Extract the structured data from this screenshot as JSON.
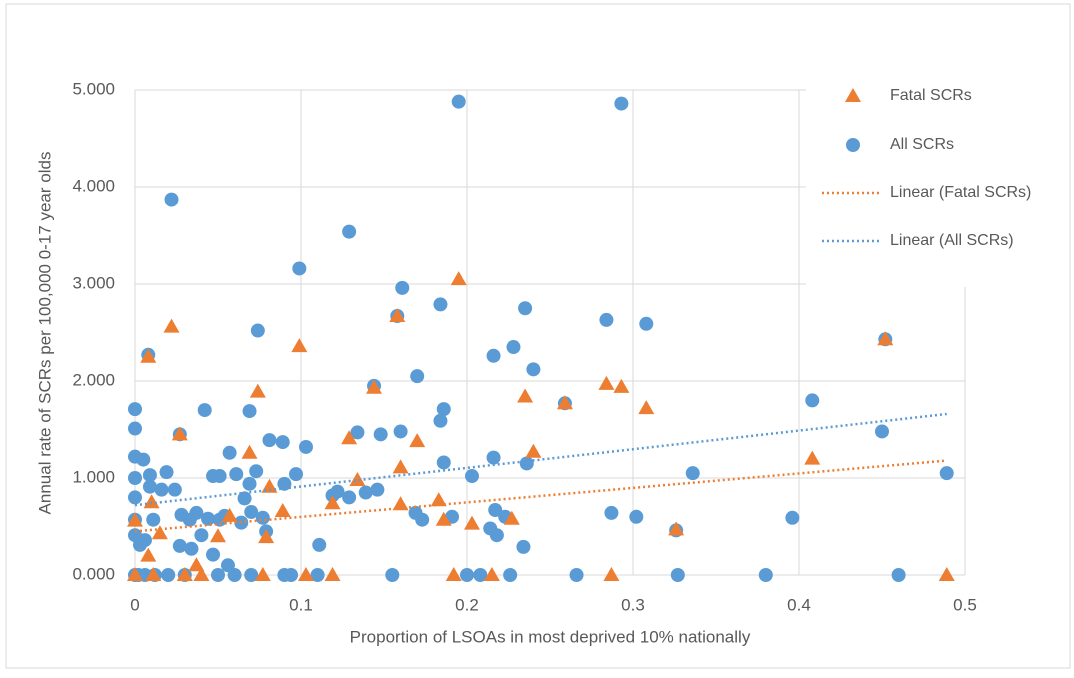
{
  "chart_data": {
    "type": "scatter",
    "x_label": "Proportion of LSOAs in most deprived 10% nationally",
    "y_label": "Annual rate of SCRs per 100,000 0-17 year olds",
    "xlim": [
      0,
      0.5
    ],
    "xticks": [
      0,
      0.1,
      0.2,
      0.3,
      0.4,
      0.5
    ],
    "ylim": [
      0,
      5
    ],
    "yticks": [
      {
        "value": 0,
        "label": "0.000"
      },
      {
        "value": 1,
        "label": "1.000"
      },
      {
        "value": 2,
        "label": "2.000"
      },
      {
        "value": 3,
        "label": "3.000"
      },
      {
        "value": 4,
        "label": "4.000"
      },
      {
        "value": 5,
        "label": "5.000"
      }
    ],
    "grid": true,
    "legend": "right",
    "series": [
      {
        "name": "Fatal SCRs",
        "color": "#ed7d31",
        "marker": "triangle",
        "x": [
          0,
          0,
          0.008,
          0.008,
          0.01,
          0.015,
          0.022,
          0.027,
          0.037,
          0.05,
          0.057,
          0.069,
          0.074,
          0.077,
          0.079,
          0.081,
          0.089,
          0.099,
          0.103,
          0.119,
          0.119,
          0.129,
          0.134,
          0.144,
          0.158,
          0.16,
          0.16,
          0.17,
          0.183,
          0.186,
          0.192,
          0.195,
          0.203,
          0.215,
          0.227,
          0.235,
          0.24,
          0.259,
          0.284,
          0.287,
          0.293,
          0.308,
          0.326,
          0.408,
          0.452,
          0.489,
          0.03,
          0.04,
          0.011
        ],
        "values": [
          0.56,
          0,
          2.25,
          0.2,
          0.75,
          0.43,
          2.56,
          1.45,
          0.1,
          0.4,
          0.61,
          1.26,
          1.89,
          0,
          0.39,
          0.91,
          0.66,
          2.36,
          0,
          0,
          0.74,
          1.41,
          0.98,
          1.93,
          2.67,
          1.11,
          0.73,
          1.38,
          0.77,
          0.57,
          0,
          3.05,
          0.53,
          0,
          0.58,
          1.84,
          1.27,
          1.77,
          1.97,
          0,
          1.94,
          1.72,
          0.47,
          1.2,
          2.43,
          0,
          0,
          0,
          0
        ]
      },
      {
        "name": "All SCRs",
        "color": "#5b9bd5",
        "marker": "circle",
        "x": [
          0,
          0,
          0,
          0,
          0,
          0,
          0,
          0,
          0.005,
          0.008,
          0.009,
          0.009,
          0.011,
          0.006,
          0.003,
          0.006,
          0.016,
          0.019,
          0.022,
          0.024,
          0.027,
          0.028,
          0.027,
          0.033,
          0.034,
          0.037,
          0.042,
          0.04,
          0.044,
          0.047,
          0.051,
          0.047,
          0.051,
          0.054,
          0.057,
          0.056,
          0.061,
          0.064,
          0.066,
          0.069,
          0.069,
          0.07,
          0.073,
          0.074,
          0.077,
          0.079,
          0.081,
          0.089,
          0.09,
          0.097,
          0.099,
          0.103,
          0.111,
          0.119,
          0.122,
          0.129,
          0.129,
          0.134,
          0.139,
          0.144,
          0.146,
          0.148,
          0.158,
          0.16,
          0.161,
          0.169,
          0.17,
          0.173,
          0.184,
          0.184,
          0.186,
          0.186,
          0.191,
          0.195,
          0.203,
          0.214,
          0.216,
          0.216,
          0.217,
          0.218,
          0.223,
          0.228,
          0.235,
          0.236,
          0.234,
          0.24,
          0.259,
          0.266,
          0.284,
          0.287,
          0.293,
          0.302,
          0.308,
          0.326,
          0.336,
          0.396,
          0.408,
          0.45,
          0.452,
          0.489,
          0.002,
          0.012,
          0.02,
          0.03,
          0.05,
          0.06,
          0.07,
          0.09,
          0.094,
          0.11,
          0.155,
          0.2,
          0.208,
          0.226,
          0.327,
          0.38,
          0.46
        ],
        "values": [
          1.71,
          1.51,
          1.22,
          1.0,
          0.8,
          0.57,
          0.41,
          0,
          1.19,
          2.27,
          1.03,
          0.91,
          0.57,
          0.36,
          0.31,
          0,
          0.88,
          1.06,
          3.87,
          0.88,
          1.45,
          0.62,
          0.3,
          0.57,
          0.27,
          0.64,
          1.7,
          0.41,
          0.58,
          1.02,
          1.02,
          0.21,
          0.57,
          0.61,
          1.26,
          0.1,
          1.04,
          0.54,
          0.79,
          1.69,
          0.94,
          0.65,
          1.07,
          2.52,
          0.59,
          0.45,
          1.39,
          1.37,
          0.94,
          1.04,
          3.16,
          1.32,
          0.31,
          0.82,
          0.86,
          3.54,
          0.8,
          1.47,
          0.85,
          1.95,
          0.88,
          1.45,
          2.67,
          1.48,
          2.96,
          0.64,
          2.05,
          0.57,
          2.79,
          1.59,
          1.71,
          1.16,
          0.6,
          4.88,
          1.02,
          0.48,
          2.26,
          1.21,
          0.67,
          0.41,
          0.6,
          2.35,
          2.75,
          1.15,
          0.29,
          2.12,
          1.77,
          0,
          2.63,
          0.64,
          4.86,
          0.6,
          2.59,
          0.46,
          1.05,
          0.59,
          1.8,
          1.48,
          2.43,
          1.05,
          0,
          0,
          0,
          0,
          0,
          0,
          0,
          0,
          0,
          0,
          0,
          0,
          0,
          0,
          0,
          0,
          0
        ]
      }
    ],
    "trendlines": [
      {
        "name": "Linear (Fatal SCRs)",
        "color": "#ed7d31",
        "x": [
          0,
          0.489
        ],
        "values": [
          0.45,
          1.18
        ]
      },
      {
        "name": "Linear (All SCRs)",
        "color": "#5b9bd5",
        "x": [
          0,
          0.489
        ],
        "values": [
          0.72,
          1.66
        ]
      }
    ]
  }
}
